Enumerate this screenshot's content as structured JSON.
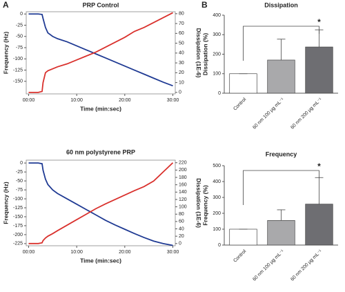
{
  "panel_labels": [
    "A",
    "B"
  ],
  "chart_data": [
    {
      "type": "line",
      "title": "PRP Control",
      "x_label": "Time (min:sec)",
      "y_label": "Frequency (Hz)",
      "y2_label": "Dissipation (1E-6)",
      "x": [
        0,
        1,
        2,
        2.8,
        3,
        3.5,
        4,
        5,
        6,
        8,
        10,
        12,
        14,
        16,
        18,
        20,
        22,
        24,
        26,
        28,
        30
      ],
      "xlim": [
        -0.5,
        30.5
      ],
      "xticks": [
        {
          "value": 0,
          "label": "00:00"
        },
        {
          "value": 10,
          "label": "10:00"
        },
        {
          "value": 20,
          "label": "20:00"
        },
        {
          "value": 30,
          "label": "30:00"
        }
      ],
      "ylim": [
        -178,
        5
      ],
      "yticks": [
        0,
        -25,
        -50,
        -75,
        -100,
        -125,
        -150
      ],
      "y2lim": [
        -1.5,
        82
      ],
      "y2ticks": [
        0,
        10,
        20,
        30,
        40,
        50,
        60,
        70,
        80
      ],
      "series": [
        {
          "name": "Frequency",
          "color": "#1f3a93",
          "values": [
            0,
            0,
            0,
            -1,
            -10,
            -30,
            -42,
            -50,
            -55,
            -62,
            -71,
            -80,
            -89,
            -98,
            -107,
            -116,
            -125,
            -134,
            -143,
            -152,
            -160
          ]
        },
        {
          "name": "Dissipation",
          "color": "#d9302c",
          "axis": "y2",
          "values": [
            0,
            0,
            0,
            1,
            10,
            20,
            22,
            24,
            26,
            29,
            33,
            37,
            41,
            46,
            51,
            56,
            62,
            66,
            71,
            76,
            81
          ]
        }
      ]
    },
    {
      "type": "line",
      "title": "60 nm polystyrene PRP",
      "x_label": "Time (min:sec)",
      "y_label": "Frequency (Hz)",
      "y2_label": "Dissipation (1E-6)",
      "x": [
        0,
        1,
        2,
        2.8,
        3,
        3.5,
        4,
        5,
        6,
        8,
        10,
        12,
        14,
        16,
        18,
        20,
        22,
        24,
        26,
        28,
        30
      ],
      "xlim": [
        -0.5,
        30.5
      ],
      "xticks": [
        {
          "value": 0,
          "label": "00:00"
        },
        {
          "value": 10,
          "label": "10:00"
        },
        {
          "value": 20,
          "label": "20:00"
        },
        {
          "value": 30,
          "label": "30:00"
        }
      ],
      "ylim": [
        -231,
        8
      ],
      "yticks": [
        0,
        -25,
        -50,
        -75,
        -100,
        -125,
        -150,
        -175,
        -200,
        -225
      ],
      "y2lim": [
        -6,
        227
      ],
      "y2ticks": [
        0,
        20,
        40,
        60,
        80,
        100,
        120,
        140,
        160,
        180,
        200,
        220
      ],
      "series": [
        {
          "name": "Frequency",
          "color": "#1f3a93",
          "values": [
            0,
            0,
            0,
            -2,
            -20,
            -45,
            -60,
            -75,
            -85,
            -100,
            -115,
            -130,
            -145,
            -160,
            -173,
            -185,
            -197,
            -208,
            -218,
            -225,
            -230
          ]
        },
        {
          "name": "Dissipation",
          "color": "#d9302c",
          "axis": "y2",
          "values": [
            0,
            0,
            0,
            2,
            8,
            15,
            20,
            27,
            35,
            50,
            65,
            80,
            95,
            108,
            120,
            132,
            144,
            155,
            170,
            195,
            220
          ]
        }
      ]
    },
    {
      "type": "bar",
      "title": "Dissipation",
      "y_label": "Dissipation (%)",
      "categories": [
        "Control",
        "60 nm 100 μg mL⁻¹",
        "60 nm 200 μg mL⁻¹"
      ],
      "values": [
        100,
        170,
        237
      ],
      "errors": [
        0,
        107,
        88
      ],
      "colors": [
        "#ffffff",
        "#a9a9ab",
        "#6e6e72"
      ],
      "ylim": [
        0,
        400
      ],
      "yticks": [
        0,
        100,
        200,
        300,
        400
      ],
      "annotation": "*"
    },
    {
      "type": "bar",
      "title": "Frequency",
      "y_label": "Frequency (%)",
      "categories": [
        "Control",
        "60 nm 100 μg mL⁻¹",
        "60 nm 200 μg mL⁻¹"
      ],
      "values": [
        100,
        155,
        258
      ],
      "errors": [
        0,
        67,
        167
      ],
      "colors": [
        "#ffffff",
        "#a9a9ab",
        "#6e6e72"
      ],
      "ylim": [
        0,
        500
      ],
      "yticks": [
        0,
        100,
        200,
        300,
        400,
        500
      ],
      "annotation": "*"
    }
  ]
}
